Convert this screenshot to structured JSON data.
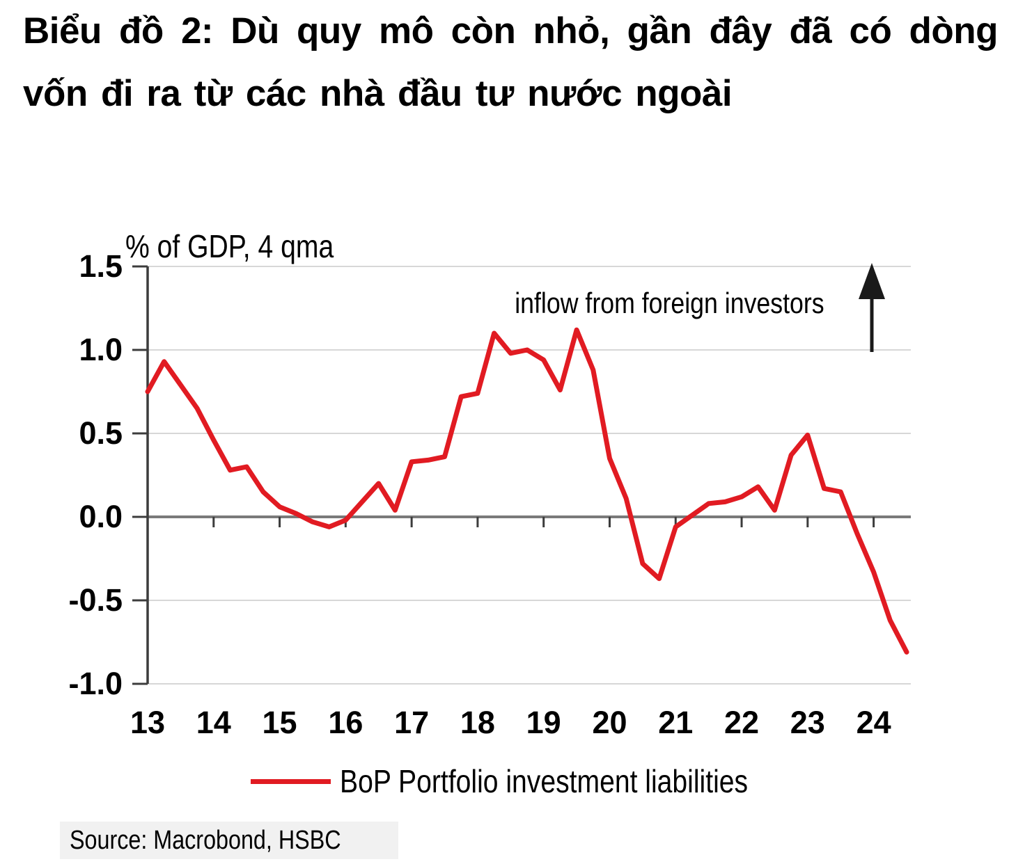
{
  "title": {
    "line1": "Biểu đồ 2: Dù quy mô còn nhỏ, gần đây đã có dòng",
    "line2": "vốn đi ra từ các nhà đầu tư nước ngoài",
    "full": "Biểu đồ 2: Dù quy mô còn nhỏ, gần đây đã có dòng vốn đi ra từ các nhà đầu tư nước ngoài"
  },
  "source": "Source: Macrobond, HSBC",
  "chart_data": {
    "type": "line",
    "title": "Biểu đồ 2: Dù quy mô còn nhỏ, gần đây đã có dòng vốn đi ra từ các nhà đầu tư nước ngoài",
    "ylabel": "% of GDP, 4 qma",
    "annotation": "inflow from foreign investors",
    "ylim": [
      -1.0,
      1.5
    ],
    "grid": "horizontal",
    "y_ticks": [
      1.5,
      1.0,
      0.5,
      0.0,
      -0.5,
      -1.0
    ],
    "y_tick_labels": [
      "1.5",
      "1.0",
      "0.5",
      "0.0",
      "-0.5",
      "-1.0"
    ],
    "x_tick_labels": [
      "13",
      "14",
      "15",
      "16",
      "17",
      "18",
      "19",
      "20",
      "21",
      "22",
      "23",
      "24"
    ],
    "legend_position": "bottom-center",
    "legend": [
      {
        "label": "BoP Portfolio investment liabilities",
        "color": "#e11b22"
      }
    ],
    "series": [
      {
        "name": "BoP Portfolio investment liabilities",
        "color": "#e11b22",
        "x_start": "2013Q1",
        "x_interval": "quarterly",
        "values": [
          0.75,
          0.93,
          0.79,
          0.65,
          0.46,
          0.28,
          0.3,
          0.15,
          0.06,
          0.02,
          -0.03,
          -0.06,
          -0.02,
          0.09,
          0.2,
          0.04,
          0.33,
          0.34,
          0.36,
          0.72,
          0.74,
          1.1,
          0.98,
          1.0,
          0.94,
          0.76,
          1.12,
          0.88,
          0.35,
          0.11,
          -0.28,
          -0.37,
          -0.06,
          0.01,
          0.08,
          0.09,
          0.12,
          0.18,
          0.04,
          0.37,
          0.49,
          0.17,
          0.15,
          -0.1,
          -0.33,
          -0.62,
          -0.81
        ]
      }
    ],
    "colors": {
      "grid": "#d7d7d7",
      "zero_line": "#7a7a7a",
      "axis": "#3c3c3c",
      "arrow": "#1a1a1a"
    }
  }
}
